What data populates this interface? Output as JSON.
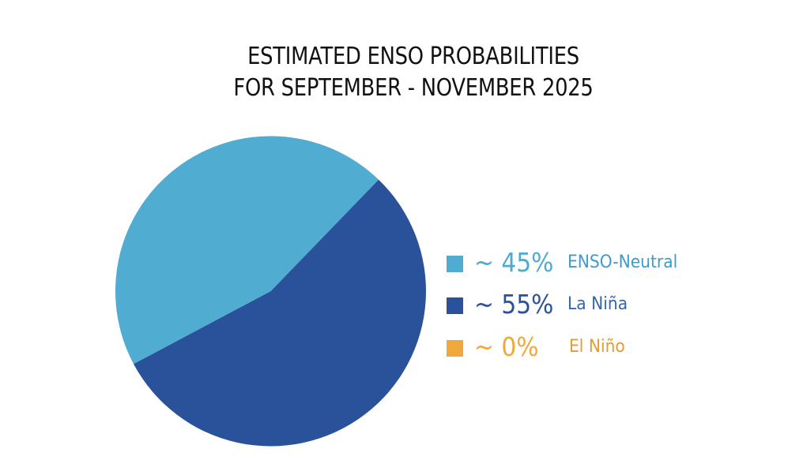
{
  "title": {
    "line1": "ESTIMATED ENSO PROBABILITIES",
    "line2": "FOR SEPTEMBER - NOVEMBER 2025"
  },
  "legend": [
    {
      "pct": "~ 45%",
      "label": "ENSO-Neutral",
      "color": "#51ACD2",
      "text_color": "#4FAAD2",
      "label_color": "#3E9BCB"
    },
    {
      "pct": "~ 55%",
      "label": "La Niña",
      "color": "#2A529B",
      "text_color": "#2A529B",
      "label_color": "#3466B2"
    },
    {
      "pct": "~ 0%",
      "label": "El Niño",
      "color": "#EEA93A",
      "text_color": "#EEA93A",
      "label_color": "#E59B33"
    }
  ],
  "chart_data": {
    "type": "pie",
    "title": "ESTIMATED ENSO PROBABILITIES FOR SEPTEMBER - NOVEMBER 2025",
    "categories": [
      "ENSO-Neutral",
      "La Niña",
      "El Niño"
    ],
    "values": [
      45,
      55,
      0
    ],
    "labels": [
      "~ 45%",
      "~ 55%",
      "~ 0%"
    ],
    "colors": [
      "#51ACD2",
      "#2A529B",
      "#EEA93A"
    ],
    "legend_position": "right"
  }
}
